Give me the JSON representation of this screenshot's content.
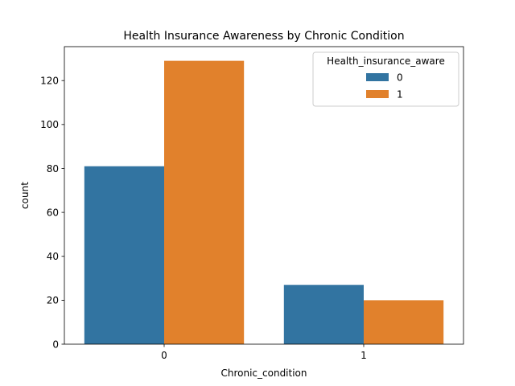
{
  "chart_data": {
    "type": "bar",
    "title": "Health Insurance Awareness by Chronic Condition",
    "xlabel": "Chronic_condition",
    "ylabel": "count",
    "categories": [
      "0",
      "1"
    ],
    "series": [
      {
        "name": "0",
        "values": [
          81,
          27
        ],
        "color": "#3274a1"
      },
      {
        "name": "1",
        "values": [
          129,
          20
        ],
        "color": "#e1812c"
      }
    ],
    "ylim": [
      0,
      135.45
    ],
    "yticks": [
      0,
      20,
      40,
      60,
      80,
      100,
      120
    ],
    "legend": {
      "title": "Health_insurance_aware",
      "position": "top-right"
    },
    "grid": false
  }
}
